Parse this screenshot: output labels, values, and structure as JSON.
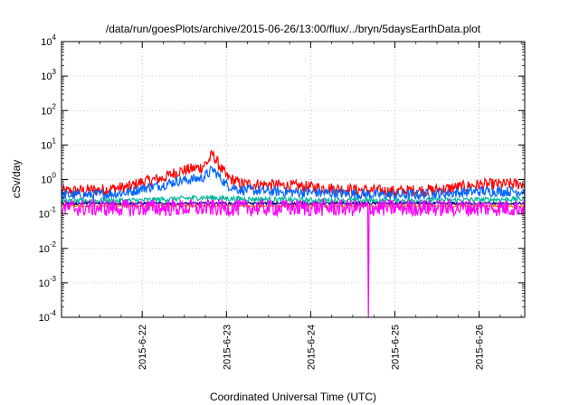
{
  "chart_data": {
    "type": "line",
    "title": "/data/run/goesPlots/archive/2015-06-26/13:00/flux/../bryn/5daysEarthData.plot",
    "xlabel": "Coordinated Universal Time (UTC)",
    "ylabel": "cSv/day",
    "y_scale": "log",
    "ylim": [
      0.0001,
      10000
    ],
    "y_ticks": [
      {
        "value": 0.0001,
        "base": "10",
        "exp": "-4"
      },
      {
        "value": 0.001,
        "base": "10",
        "exp": "-3"
      },
      {
        "value": 0.01,
        "base": "10",
        "exp": "-2"
      },
      {
        "value": 0.1,
        "base": "10",
        "exp": "-1"
      },
      {
        "value": 1,
        "base": "10",
        "exp": "0"
      },
      {
        "value": 10,
        "base": "10",
        "exp": "1"
      },
      {
        "value": 100,
        "base": "10",
        "exp": "2"
      },
      {
        "value": 1000,
        "base": "10",
        "exp": "3"
      },
      {
        "value": 10000,
        "base": "10",
        "exp": "4"
      }
    ],
    "xlim": [
      "2015-06-21 01:00",
      "2015-06-26 13:00"
    ],
    "x_ticks": [
      {
        "value": "2015-06-22 00:00",
        "label": "2015-6-22"
      },
      {
        "value": "2015-06-23 00:00",
        "label": "2015-6-23"
      },
      {
        "value": "2015-06-24 00:00",
        "label": "2015-6-24"
      },
      {
        "value": "2015-06-25 00:00",
        "label": "2015-6-25"
      },
      {
        "value": "2015-06-26 00:00",
        "label": "2015-6-26"
      }
    ],
    "grid": true,
    "legend": "none",
    "series": [
      {
        "color": "#ff0000",
        "noise": 0.35,
        "x": [
          "2015-06-21 01:00",
          "2015-06-21 12:00",
          "2015-06-21 20:00",
          "2015-06-22 00:00",
          "2015-06-22 06:00",
          "2015-06-22 10:00",
          "2015-06-22 14:00",
          "2015-06-22 17:00",
          "2015-06-22 19:00",
          "2015-06-22 20:00",
          "2015-06-22 22:00",
          "2015-06-23 00:00",
          "2015-06-23 04:00",
          "2015-06-23 12:00",
          "2015-06-24 00:00",
          "2015-06-24 12:00",
          "2015-06-25 00:00",
          "2015-06-25 12:00",
          "2015-06-26 00:00",
          "2015-06-26 13:00"
        ],
        "y": [
          0.45,
          0.5,
          0.6,
          0.85,
          1.1,
          1.7,
          2.0,
          2.3,
          3.5,
          5.5,
          2.5,
          1.2,
          0.75,
          0.7,
          0.6,
          0.5,
          0.45,
          0.5,
          0.7,
          0.75
        ]
      },
      {
        "color": "#0066ff",
        "noise": 0.3,
        "x": [
          "2015-06-21 01:00",
          "2015-06-21 12:00",
          "2015-06-21 20:00",
          "2015-06-22 00:00",
          "2015-06-22 06:00",
          "2015-06-22 10:00",
          "2015-06-22 14:00",
          "2015-06-22 17:00",
          "2015-06-22 19:00",
          "2015-06-22 20:00",
          "2015-06-22 22:00",
          "2015-06-23 00:00",
          "2015-06-23 04:00",
          "2015-06-23 12:00",
          "2015-06-24 00:00",
          "2015-06-24 12:00",
          "2015-06-25 00:00",
          "2015-06-25 12:00",
          "2015-06-26 00:00",
          "2015-06-26 13:00"
        ],
        "y": [
          0.35,
          0.36,
          0.42,
          0.55,
          0.7,
          0.9,
          1.0,
          1.1,
          1.5,
          2.0,
          1.2,
          0.7,
          0.5,
          0.45,
          0.42,
          0.38,
          0.35,
          0.38,
          0.45,
          0.45
        ]
      },
      {
        "color": "#00bb99",
        "noise": 0.15,
        "x": [
          "2015-06-21 01:00",
          "2015-06-22 00:00",
          "2015-06-22 18:00",
          "2015-06-23 00:00",
          "2015-06-24 00:00",
          "2015-06-25 00:00",
          "2015-06-26 13:00"
        ],
        "y": [
          0.23,
          0.25,
          0.3,
          0.28,
          0.25,
          0.24,
          0.27
        ]
      },
      {
        "color": "#000080",
        "noise": 0.08,
        "x": [
          "2015-06-21 01:00",
          "2015-06-26 13:00"
        ],
        "y": [
          0.2,
          0.2
        ]
      },
      {
        "color": "#ff8800",
        "noise": 0.06,
        "x": [
          "2015-06-21 01:00",
          "2015-06-26 13:00"
        ],
        "y": [
          0.17,
          0.17
        ]
      },
      {
        "color": "#ff00ff",
        "noise": 0.5,
        "x": [
          "2015-06-21 01:00",
          "2015-06-26 13:00"
        ],
        "y": [
          0.15,
          0.15
        ],
        "dropout": {
          "x": "2015-06-24 16:30",
          "y": 0.0001
        }
      }
    ]
  }
}
